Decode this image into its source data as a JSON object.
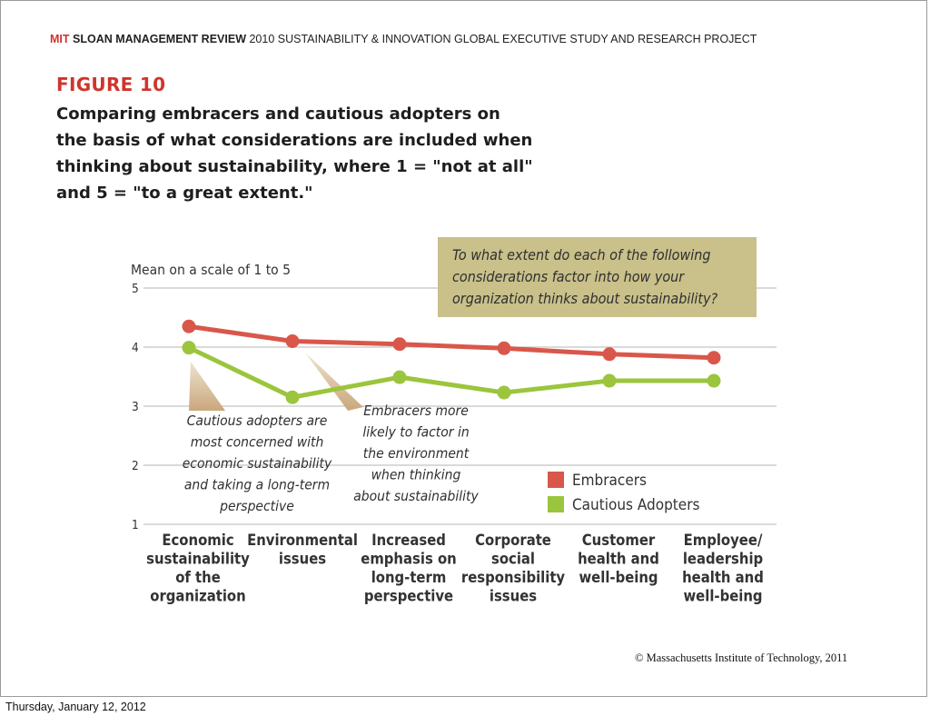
{
  "header": {
    "mit": "MIT",
    "sloan": "SLOAN MANAGEMENT REVIEW",
    "study": "2010 SUSTAINABILITY & INNOVATION GLOBAL EXECUTIVE STUDY AND RESEARCH PROJECT"
  },
  "figure": {
    "label": "FIGURE 10",
    "caption_lines": [
      "Comparing embracers and cautious adopters on",
      "the basis of what considerations are included when",
      "thinking about sustainability, where 1 = \"not at all\"",
      "and 5 = \"to a great extent.\""
    ]
  },
  "chart_data": {
    "type": "line",
    "ylabel": "Mean on a scale of 1 to 5",
    "ylim": [
      1,
      5
    ],
    "yticks": [
      1,
      2,
      3,
      4,
      5
    ],
    "grid": true,
    "categories": [
      [
        "Economic",
        "sustainability",
        "of the",
        "organization"
      ],
      [
        "Environmental",
        "issues"
      ],
      [
        "Increased",
        "emphasis on",
        "long-term",
        "perspective"
      ],
      [
        "Corporate",
        "social",
        "responsibility",
        "issues"
      ],
      [
        "Customer",
        "health and",
        "well-being"
      ],
      [
        "Employee/",
        "leadership",
        "health and",
        "well-being"
      ]
    ],
    "series": [
      {
        "name": "Embracers",
        "color": "#d9574a",
        "values": [
          4.35,
          4.1,
          4.05,
          3.98,
          3.88,
          3.82
        ]
      },
      {
        "name": "Cautious Adopters",
        "color": "#9bc53d",
        "values": [
          3.99,
          3.15,
          3.49,
          3.23,
          3.43,
          3.43
        ]
      }
    ],
    "legend_position": "bottom-right",
    "question_box": {
      "lines": [
        "To what extent do each of the following",
        "considerations factor into how your",
        "organization thinks about sustainability?"
      ],
      "color": "#c9c08a"
    },
    "annotations": [
      {
        "lines": [
          "Cautious adopters are",
          "most concerned with",
          "economic sustainability",
          "and taking a long-term",
          "perspective"
        ]
      },
      {
        "lines": [
          "Embracers more",
          "likely to factor in",
          "the environment",
          "when thinking",
          "about sustainability"
        ]
      }
    ]
  },
  "copyright": "© Massachusetts Institute of Technology, 2011",
  "footer_date": "Thursday, January 12, 2012"
}
